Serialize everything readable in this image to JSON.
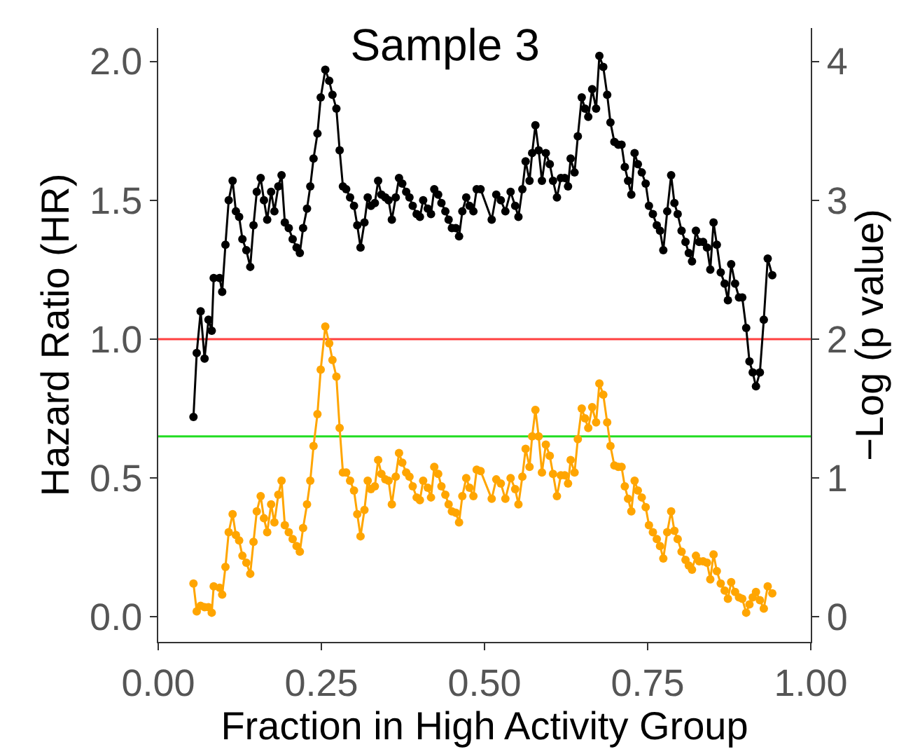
{
  "chart_data": {
    "type": "line",
    "title": "Sample 3",
    "xlabel": "Fraction in High Activity Group",
    "ylabel": "Hazard Ratio (HR)",
    "y2label": "−Log (p value)",
    "x": [
      0.054,
      0.059,
      0.065,
      0.071,
      0.077,
      0.082,
      0.085,
      0.094,
      0.098,
      0.103,
      0.108,
      0.114,
      0.119,
      0.124,
      0.129,
      0.135,
      0.141,
      0.146,
      0.151,
      0.157,
      0.162,
      0.167,
      0.173,
      0.178,
      0.184,
      0.189,
      0.194,
      0.2,
      0.206,
      0.212,
      0.217,
      0.222,
      0.228,
      0.233,
      0.238,
      0.244,
      0.249,
      0.256,
      0.262,
      0.267,
      0.273,
      0.278,
      0.283,
      0.288,
      0.294,
      0.3,
      0.305,
      0.31,
      0.316,
      0.321,
      0.326,
      0.332,
      0.337,
      0.342,
      0.348,
      0.353,
      0.358,
      0.364,
      0.369,
      0.374,
      0.38,
      0.385,
      0.39,
      0.396,
      0.401,
      0.406,
      0.413,
      0.418,
      0.423,
      0.429,
      0.434,
      0.44,
      0.445,
      0.45,
      0.456,
      0.461,
      0.466,
      0.472,
      0.477,
      0.483,
      0.488,
      0.494,
      0.511,
      0.518,
      0.525,
      0.532,
      0.54,
      0.547,
      0.552,
      0.558,
      0.563,
      0.569,
      0.573,
      0.578,
      0.583,
      0.588,
      0.594,
      0.6,
      0.605,
      0.611,
      0.617,
      0.623,
      0.628,
      0.632,
      0.638,
      0.643,
      0.649,
      0.654,
      0.659,
      0.665,
      0.671,
      0.676,
      0.682,
      0.688,
      0.693,
      0.699,
      0.705,
      0.71,
      0.715,
      0.72,
      0.725,
      0.73,
      0.735,
      0.741,
      0.747,
      0.752,
      0.758,
      0.764,
      0.769,
      0.774,
      0.78,
      0.786,
      0.791,
      0.796,
      0.802,
      0.808,
      0.813,
      0.818,
      0.824,
      0.829,
      0.835,
      0.841,
      0.846,
      0.851,
      0.856,
      0.862,
      0.868,
      0.873,
      0.878,
      0.884,
      0.89,
      0.895,
      0.901,
      0.906,
      0.911,
      0.916,
      0.922,
      0.928,
      0.934,
      0.941
    ],
    "series": [
      {
        "color": "#000000",
        "values": [
          0.72,
          0.95,
          1.1,
          0.93,
          1.07,
          1.03,
          1.22,
          1.22,
          1.17,
          1.34,
          1.5,
          1.57,
          1.46,
          1.44,
          1.36,
          1.32,
          1.26,
          1.41,
          1.53,
          1.58,
          1.5,
          1.43,
          1.53,
          1.46,
          1.55,
          1.59,
          1.42,
          1.4,
          1.36,
          1.33,
          1.31,
          1.4,
          1.47,
          1.55,
          1.65,
          1.74,
          1.87,
          1.97,
          1.93,
          1.88,
          1.83,
          1.68,
          1.55,
          1.54,
          1.51,
          1.48,
          1.41,
          1.33,
          1.42,
          1.51,
          1.48,
          1.49,
          1.57,
          1.52,
          1.51,
          1.5,
          1.43,
          1.51,
          1.58,
          1.56,
          1.53,
          1.51,
          1.48,
          1.45,
          1.44,
          1.5,
          1.47,
          1.45,
          1.54,
          1.52,
          1.49,
          1.46,
          1.43,
          1.4,
          1.4,
          1.37,
          1.46,
          1.51,
          1.48,
          1.46,
          1.54,
          1.54,
          1.43,
          1.52,
          1.5,
          1.46,
          1.53,
          1.48,
          1.44,
          1.54,
          1.64,
          1.57,
          1.67,
          1.77,
          1.68,
          1.57,
          1.67,
          1.63,
          1.57,
          1.51,
          1.58,
          1.58,
          1.55,
          1.65,
          1.6,
          1.73,
          1.87,
          1.83,
          1.8,
          1.9,
          1.83,
          2.02,
          1.98,
          1.88,
          1.78,
          1.71,
          1.7,
          1.7,
          1.62,
          1.57,
          1.52,
          1.67,
          1.63,
          1.6,
          1.56,
          1.48,
          1.45,
          1.41,
          1.39,
          1.32,
          1.46,
          1.59,
          1.49,
          1.45,
          1.39,
          1.35,
          1.31,
          1.28,
          1.39,
          1.35,
          1.35,
          1.33,
          1.25,
          1.42,
          1.34,
          1.24,
          1.2,
          1.14,
          1.27,
          1.2,
          1.15,
          1.15,
          1.04,
          0.92,
          0.88,
          0.83,
          0.88,
          1.07,
          1.29,
          1.23
        ]
      },
      {
        "color": "#ffa500",
        "axis": "y2",
        "values": [
          0.24,
          0.04,
          0.08,
          0.07,
          0.07,
          0.03,
          0.22,
          0.21,
          0.16,
          0.36,
          0.61,
          0.74,
          0.59,
          0.55,
          0.44,
          0.39,
          0.31,
          0.54,
          0.76,
          0.87,
          0.71,
          0.61,
          0.81,
          0.68,
          0.88,
          0.98,
          0.66,
          0.61,
          0.56,
          0.51,
          0.47,
          0.64,
          0.81,
          0.98,
          1.23,
          1.46,
          1.78,
          2.09,
          1.97,
          1.85,
          1.73,
          1.36,
          1.04,
          1.04,
          0.98,
          0.91,
          0.74,
          0.58,
          0.77,
          0.98,
          0.92,
          0.94,
          1.13,
          1.03,
          0.99,
          0.98,
          0.81,
          1.01,
          1.18,
          1.11,
          1.04,
          1.01,
          0.94,
          0.86,
          0.84,
          0.98,
          0.93,
          0.86,
          1.08,
          1.03,
          0.94,
          0.88,
          0.81,
          0.76,
          0.75,
          0.68,
          0.87,
          1.0,
          0.93,
          0.87,
          1.06,
          1.05,
          0.85,
          0.99,
          0.96,
          0.85,
          1.0,
          0.92,
          0.81,
          1.01,
          1.21,
          1.08,
          1.3,
          1.49,
          1.3,
          1.04,
          1.24,
          1.16,
          1.03,
          0.87,
          1.02,
          1.02,
          0.96,
          1.13,
          1.04,
          1.28,
          1.5,
          1.43,
          1.36,
          1.51,
          1.4,
          1.68,
          1.6,
          1.4,
          1.23,
          1.09,
          1.08,
          1.08,
          0.94,
          0.85,
          0.76,
          0.98,
          0.91,
          0.86,
          0.79,
          0.66,
          0.61,
          0.56,
          0.51,
          0.42,
          0.61,
          0.76,
          0.62,
          0.56,
          0.47,
          0.41,
          0.37,
          0.34,
          0.44,
          0.4,
          0.4,
          0.39,
          0.27,
          0.45,
          0.33,
          0.24,
          0.19,
          0.13,
          0.25,
          0.18,
          0.14,
          0.13,
          0.03,
          0.09,
          0.14,
          0.18,
          0.12,
          0.06,
          0.22,
          0.17
        ]
      }
    ],
    "xlim": [
      0,
      1
    ],
    "xticks": [
      {
        "value": 0,
        "label": "0.00"
      },
      {
        "value": 0.25,
        "label": "0.25"
      },
      {
        "value": 0.5,
        "label": "0.50"
      },
      {
        "value": 0.75,
        "label": "0.75"
      },
      {
        "value": 1,
        "label": "1.00"
      }
    ],
    "ylim": [
      -0.09,
      2.12
    ],
    "yticks": [
      {
        "value": 0,
        "label": "0.0"
      },
      {
        "value": 0.5,
        "label": "0.5"
      },
      {
        "value": 1,
        "label": "1.0"
      },
      {
        "value": 1.5,
        "label": "1.5"
      },
      {
        "value": 2,
        "label": "2.0"
      }
    ],
    "y2lim": [
      -0.18,
      4.24
    ],
    "y2ticks": [
      0,
      1,
      2,
      3,
      4
    ],
    "ref_lines": [
      {
        "axis": "y",
        "value": 1.0,
        "color": "#ff4040"
      },
      {
        "axis": "y2",
        "value": 1.3,
        "color": "#22dd22"
      }
    ],
    "marker": "circle",
    "line_style": "solid"
  }
}
